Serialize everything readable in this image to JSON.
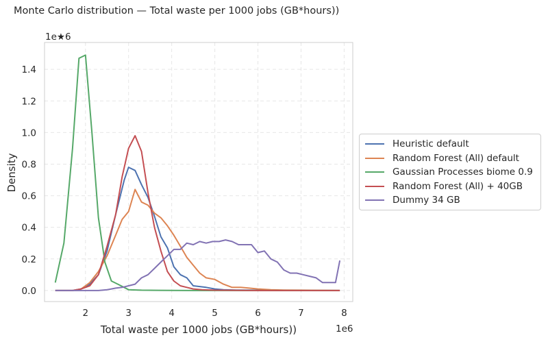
{
  "chart_data": {
    "type": "line",
    "title": "Monte Carlo distribution — Total waste per 1000 jobs (GB*hours))",
    "xlabel": "Total waste per 1000 jobs (GB*hours))",
    "ylabel": "Density",
    "x_offset_label": "1e6",
    "y_offset_label": "1e★6",
    "xlim": [
      1.05,
      8.2
    ],
    "ylim": [
      -0.07,
      1.57
    ],
    "x_ticks": [
      2,
      3,
      4,
      5,
      6,
      7,
      8
    ],
    "y_ticks": [
      0.0,
      0.2,
      0.4,
      0.6,
      0.8,
      1.0,
      1.2,
      1.4
    ],
    "x_tick_labels": [
      "2",
      "3",
      "4",
      "5",
      "6",
      "7",
      "8"
    ],
    "y_tick_labels": [
      "0.0",
      "0.2",
      "0.4",
      "0.6",
      "0.8",
      "1.0",
      "1.2",
      "1.4"
    ],
    "grid": true,
    "legend_position": "right, outside plot",
    "series": [
      {
        "name": "Heuristic default",
        "color": "#4c72b0",
        "x": [
          1.3,
          1.5,
          1.7,
          1.9,
          2.1,
          2.3,
          2.5,
          2.7,
          2.9,
          3.0,
          3.15,
          3.3,
          3.45,
          3.6,
          3.75,
          3.9,
          4.05,
          4.2,
          4.35,
          4.5,
          4.65,
          4.8,
          5.0,
          5.2,
          5.5,
          6.0,
          6.5,
          7.0,
          7.5,
          7.9
        ],
        "y": [
          0.0,
          0.0,
          0.0,
          0.01,
          0.04,
          0.1,
          0.25,
          0.48,
          0.7,
          0.78,
          0.76,
          0.67,
          0.59,
          0.47,
          0.34,
          0.27,
          0.15,
          0.1,
          0.08,
          0.03,
          0.025,
          0.02,
          0.01,
          0.005,
          0.003,
          0.002,
          0.001,
          0.001,
          0.0,
          0.0
        ]
      },
      {
        "name": "Random Forest (All) default",
        "color": "#dd8452",
        "x": [
          1.3,
          1.5,
          1.7,
          1.9,
          2.1,
          2.3,
          2.5,
          2.7,
          2.85,
          3.0,
          3.15,
          3.3,
          3.45,
          3.6,
          3.75,
          3.9,
          4.05,
          4.2,
          4.35,
          4.5,
          4.65,
          4.8,
          5.0,
          5.2,
          5.4,
          5.6,
          5.8,
          6.0,
          6.3,
          6.6,
          7.0,
          7.5,
          7.9
        ],
        "y": [
          0.0,
          0.0,
          0.0,
          0.01,
          0.05,
          0.12,
          0.22,
          0.35,
          0.45,
          0.5,
          0.64,
          0.56,
          0.54,
          0.49,
          0.46,
          0.41,
          0.35,
          0.28,
          0.21,
          0.16,
          0.11,
          0.08,
          0.07,
          0.04,
          0.02,
          0.02,
          0.015,
          0.01,
          0.005,
          0.003,
          0.002,
          0.001,
          0.0
        ]
      },
      {
        "name": "Gaussian Processes biome 0.9",
        "color": "#55a868",
        "x": [
          1.3,
          1.5,
          1.7,
          1.85,
          2.0,
          2.15,
          2.3,
          2.45,
          2.6,
          2.75,
          3.0,
          3.3,
          3.7,
          4.5,
          5.5,
          7.0,
          7.9
        ],
        "y": [
          0.05,
          0.3,
          0.9,
          1.47,
          1.49,
          1.0,
          0.46,
          0.18,
          0.06,
          0.04,
          0.005,
          0.002,
          0.001,
          0.0,
          0.0,
          0.0,
          0.0
        ]
      },
      {
        "name": "Random Forest (All) + 40GB",
        "color": "#c44e52",
        "x": [
          1.3,
          1.5,
          1.7,
          1.9,
          2.1,
          2.3,
          2.5,
          2.7,
          2.85,
          3.0,
          3.15,
          3.3,
          3.45,
          3.6,
          3.75,
          3.9,
          4.05,
          4.2,
          4.35,
          4.5,
          4.7,
          5.0,
          5.5,
          6.0,
          7.0,
          7.9
        ],
        "y": [
          0.0,
          0.0,
          0.0,
          0.01,
          0.03,
          0.1,
          0.28,
          0.48,
          0.72,
          0.9,
          0.98,
          0.88,
          0.62,
          0.4,
          0.25,
          0.12,
          0.06,
          0.03,
          0.02,
          0.01,
          0.005,
          0.002,
          0.001,
          0.0,
          0.0,
          0.0
        ]
      },
      {
        "name": "Dummy 34 GB",
        "color": "#8172b3",
        "x": [
          1.3,
          1.5,
          1.7,
          1.9,
          2.1,
          2.3,
          2.5,
          2.6,
          2.7,
          2.85,
          3.0,
          3.15,
          3.3,
          3.45,
          3.6,
          3.75,
          3.9,
          4.05,
          4.2,
          4.35,
          4.5,
          4.65,
          4.8,
          4.95,
          5.1,
          5.25,
          5.4,
          5.55,
          5.7,
          5.85,
          6.0,
          6.15,
          6.3,
          6.45,
          6.6,
          6.75,
          6.9,
          7.05,
          7.2,
          7.35,
          7.5,
          7.65,
          7.8,
          7.9
        ],
        "y": [
          0.0,
          0.0,
          0.0,
          0.0,
          0.0,
          0.0,
          0.005,
          0.01,
          0.015,
          0.02,
          0.03,
          0.04,
          0.08,
          0.1,
          0.14,
          0.18,
          0.22,
          0.26,
          0.26,
          0.3,
          0.29,
          0.31,
          0.3,
          0.31,
          0.31,
          0.32,
          0.31,
          0.29,
          0.29,
          0.29,
          0.24,
          0.25,
          0.2,
          0.18,
          0.13,
          0.11,
          0.11,
          0.1,
          0.09,
          0.08,
          0.05,
          0.05,
          0.05,
          0.19
        ]
      }
    ]
  }
}
